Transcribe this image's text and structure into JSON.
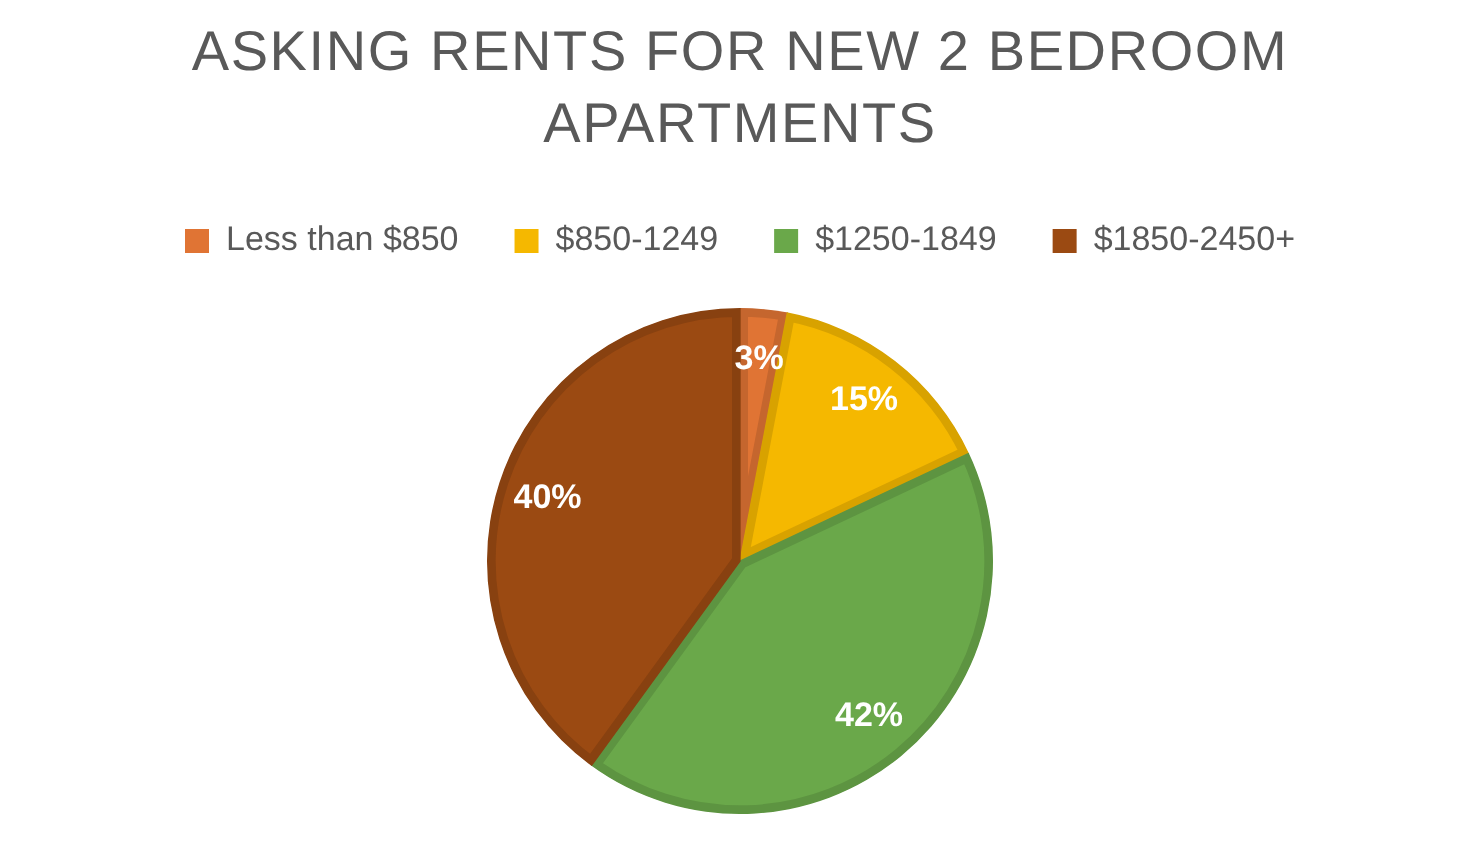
{
  "chart_data": {
    "type": "pie",
    "title": "ASKING RENTS FOR NEW 2 BEDROOM APARTMENTS",
    "categories": [
      "Less than $850",
      "$850-1249",
      "$1250-1849",
      "$1850-2450+"
    ],
    "values": [
      3,
      15,
      42,
      40
    ],
    "colors": [
      "#e07434",
      "#f5b800",
      "#6aa84a",
      "#9b4a12"
    ],
    "value_labels": [
      "3%",
      "15%",
      "42%",
      "40%"
    ],
    "legend": "top"
  }
}
